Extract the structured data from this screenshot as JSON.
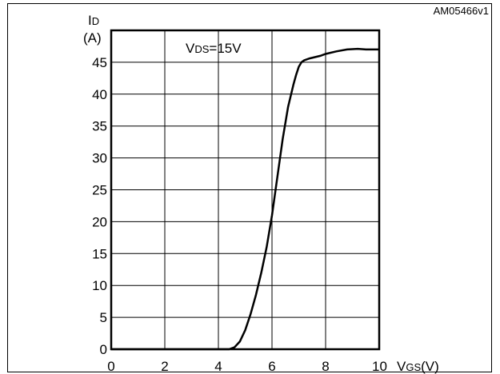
{
  "figure_code": "AM05466v1",
  "chart_data": {
    "type": "line",
    "y_axis": {
      "symbol_main": "I",
      "symbol_sub": "D",
      "unit": "(A)"
    },
    "x_axis": {
      "symbol_main": "V",
      "symbol_sub": "GS",
      "unit": "(V)"
    },
    "annotation": {
      "main": "V",
      "sub": "DS",
      "rest": "=15V"
    },
    "xlim": [
      0,
      10
    ],
    "ylim": [
      0,
      50
    ],
    "x_ticks": [
      0,
      2,
      4,
      6,
      8,
      10
    ],
    "y_ticks": [
      0,
      5,
      10,
      15,
      20,
      25,
      30,
      35,
      40,
      45
    ],
    "grid": true,
    "series": [
      {
        "x": [
          0,
          4.4,
          4.6,
          4.8,
          5.0,
          5.2,
          5.4,
          5.6,
          5.8,
          6.0,
          6.2,
          6.4,
          6.6,
          6.8,
          6.9,
          7.0,
          7.1,
          7.2,
          7.4,
          7.6,
          7.8,
          8.0,
          8.4,
          8.8,
          9.2,
          9.5,
          10.0
        ],
        "y": [
          0,
          0,
          0.3,
          1.2,
          3.0,
          5.5,
          8.5,
          12.0,
          16.0,
          21.0,
          27.0,
          33.0,
          38.0,
          41.5,
          43.0,
          44.3,
          45.0,
          45.3,
          45.6,
          45.8,
          46.0,
          46.3,
          46.7,
          47.0,
          47.1,
          47.0,
          47.0
        ]
      }
    ]
  }
}
